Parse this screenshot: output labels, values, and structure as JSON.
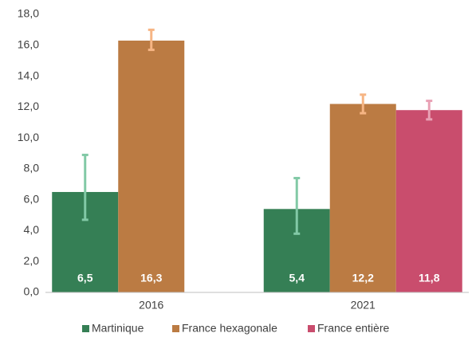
{
  "chart_data": {
    "type": "bar",
    "categories": [
      "2016",
      "2021"
    ],
    "series": [
      {
        "name": "Martinique",
        "color": "#357f55",
        "error_color": "#82c9a6",
        "values": [
          6.5,
          5.4
        ],
        "value_labels": [
          "6,5",
          "5,4"
        ],
        "errors_minus": [
          1.8,
          1.6
        ],
        "errors_plus": [
          2.4,
          2.0
        ]
      },
      {
        "name": "France hexagonale",
        "color": "#bb7b43",
        "error_color": "#f6b584",
        "values": [
          16.3,
          12.2
        ],
        "value_labels": [
          "16,3",
          "12,2"
        ],
        "errors_minus": [
          0.6,
          0.6
        ],
        "errors_plus": [
          0.7,
          0.6
        ]
      },
      {
        "name": "France entière",
        "color": "#c94d6d",
        "error_color": "#e9a1b5",
        "values": [
          null,
          11.8
        ],
        "value_labels": [
          null,
          "11,8"
        ],
        "errors_minus": [
          null,
          0.6
        ],
        "errors_plus": [
          null,
          0.6
        ]
      }
    ],
    "ylim": [
      0,
      18
    ],
    "yticks": [
      {
        "value": 0,
        "label": "0,0"
      },
      {
        "value": 2,
        "label": "2,0"
      },
      {
        "value": 4,
        "label": "4,0"
      },
      {
        "value": 6,
        "label": "6,0"
      },
      {
        "value": 8,
        "label": "8,0"
      },
      {
        "value": 10,
        "label": "10,0"
      },
      {
        "value": 12,
        "label": "12,0"
      },
      {
        "value": 14,
        "label": "14,0"
      },
      {
        "value": 16,
        "label": "16,0"
      },
      {
        "value": 18,
        "label": "18,0"
      }
    ],
    "grid": false,
    "legend": "bottom"
  }
}
